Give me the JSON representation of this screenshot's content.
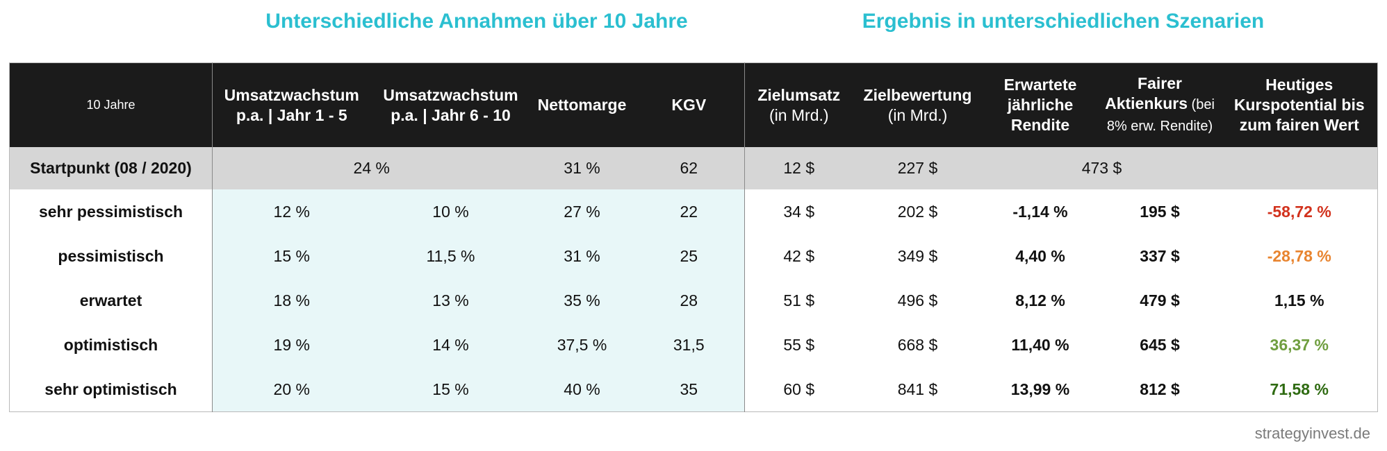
{
  "headings": {
    "left": "Unterschiedliche Annahmen über 10 Jahre",
    "right": "Ergebnis in unterschiedlichen Szenarien"
  },
  "columns": {
    "c0": "10 Jahre",
    "c1_l1": "Umsatzwachstum",
    "c1_l2": "p.a. | Jahr 1 - 5",
    "c2_l1": "Umsatzwachstum",
    "c2_l2": "p.a. | Jahr 6 - 10",
    "c3": "Nettomarge",
    "c4": "KGV",
    "c5_l1": "Zielumsatz",
    "c5_l2": "(in Mrd.)",
    "c6_l1": "Zielbewertung",
    "c6_l2": "(in Mrd.)",
    "c7_l1": "Erwartete",
    "c7_l2": "jährliche",
    "c7_l3": "Rendite",
    "c8_l1": "Fairer",
    "c8_l2a": "Aktienkurs",
    "c8_l2b": " (bei",
    "c8_l3": "8% erw. Rendite)",
    "c9_l1": "Heutiges",
    "c9_l2": "Kurspotential bis",
    "c9_l3": "zum fairen Wert"
  },
  "start": {
    "label": "Startpunkt (08 / 2020)",
    "growth": "24 %",
    "margin": "31 %",
    "kgv": "62",
    "umsatz": "12 $",
    "bewertung": "227 $",
    "kurs": "473 $"
  },
  "rows": [
    {
      "label": "sehr pessimistisch",
      "g1": "12 %",
      "g2": "10 %",
      "margin": "27 %",
      "kgv": "22",
      "umsatz": "34 $",
      "bewertung": "202 $",
      "rendite": "-1,14 %",
      "kurs": "195 $",
      "potential": "-58,72 %"
    },
    {
      "label": "pessimistisch",
      "g1": "15 %",
      "g2": "11,5 %",
      "margin": "31 %",
      "kgv": "25",
      "umsatz": "42 $",
      "bewertung": "349 $",
      "rendite": "4,40 %",
      "kurs": "337 $",
      "potential": "-28,78 %"
    },
    {
      "label": "erwartet",
      "g1": "18 %",
      "g2": "13 %",
      "margin": "35 %",
      "kgv": "28",
      "umsatz": "51 $",
      "bewertung": "496 $",
      "rendite": "8,12 %",
      "kurs": "479 $",
      "potential": "1,15 %"
    },
    {
      "label": "optimistisch",
      "g1": "19 %",
      "g2": "14 %",
      "margin": "37,5 %",
      "kgv": "31,5",
      "umsatz": "55 $",
      "bewertung": "668 $",
      "rendite": "11,40 %",
      "kurs": "645 $",
      "potential": "36,37 %"
    },
    {
      "label": "sehr optimistisch",
      "g1": "20 %",
      "g2": "15 %",
      "margin": "40 %",
      "kgv": "35",
      "umsatz": "60 $",
      "bewertung": "841 $",
      "rendite": "13,99 %",
      "kurs": "812 $",
      "potential": "71,58 %"
    }
  ],
  "colors": {
    "heading": "#2bbfd0",
    "header_bg": "#1b1b1b",
    "start_bg": "#d6d6d6",
    "assumption_bg": "#e8f7f8",
    "very_negative": "#d2321d",
    "negative": "#e8842f",
    "neutral": "#111111",
    "positive": "#6f9e3f",
    "very_positive": "#2f6b12"
  },
  "footer": "strategyinvest.de",
  "chart_data": {
    "type": "table",
    "columns": [
      "10 Jahre",
      "Umsatzwachstum p.a. | Jahr 1 - 5",
      "Umsatzwachstum p.a. | Jahr 6 - 10",
      "Nettomarge",
      "KGV",
      "Zielumsatz (in Mrd.)",
      "Zielbewertung (in Mrd.)",
      "Erwartete jährliche Rendite",
      "Fairer Aktienkurs (bei 8% erw. Rendite)",
      "Heutiges Kurspotential bis zum fairen Wert"
    ],
    "rows": [
      [
        "Startpunkt (08 / 2020)",
        "24 %",
        "24 %",
        "31 %",
        "62",
        "12 $",
        "227 $",
        "",
        "473 $",
        ""
      ],
      [
        "sehr pessimistisch",
        "12 %",
        "10 %",
        "27 %",
        "22",
        "34 $",
        "202 $",
        "-1,14 %",
        "195 $",
        "-58,72 %"
      ],
      [
        "pessimistisch",
        "15 %",
        "11,5 %",
        "31 %",
        "25",
        "42 $",
        "349 $",
        "4,40 %",
        "337 $",
        "-28,78 %"
      ],
      [
        "erwartet",
        "18 %",
        "13 %",
        "35 %",
        "28",
        "51 $",
        "496 $",
        "8,12 %",
        "479 $",
        "1,15 %"
      ],
      [
        "optimistisch",
        "19 %",
        "14 %",
        "37,5 %",
        "31,5",
        "55 $",
        "668 $",
        "11,40 %",
        "645 $",
        "36,37 %"
      ],
      [
        "sehr optimistisch",
        "20 %",
        "15 %",
        "40 %",
        "35",
        "60 $",
        "841 $",
        "13,99 %",
        "812 $",
        "71,58 %"
      ]
    ]
  }
}
